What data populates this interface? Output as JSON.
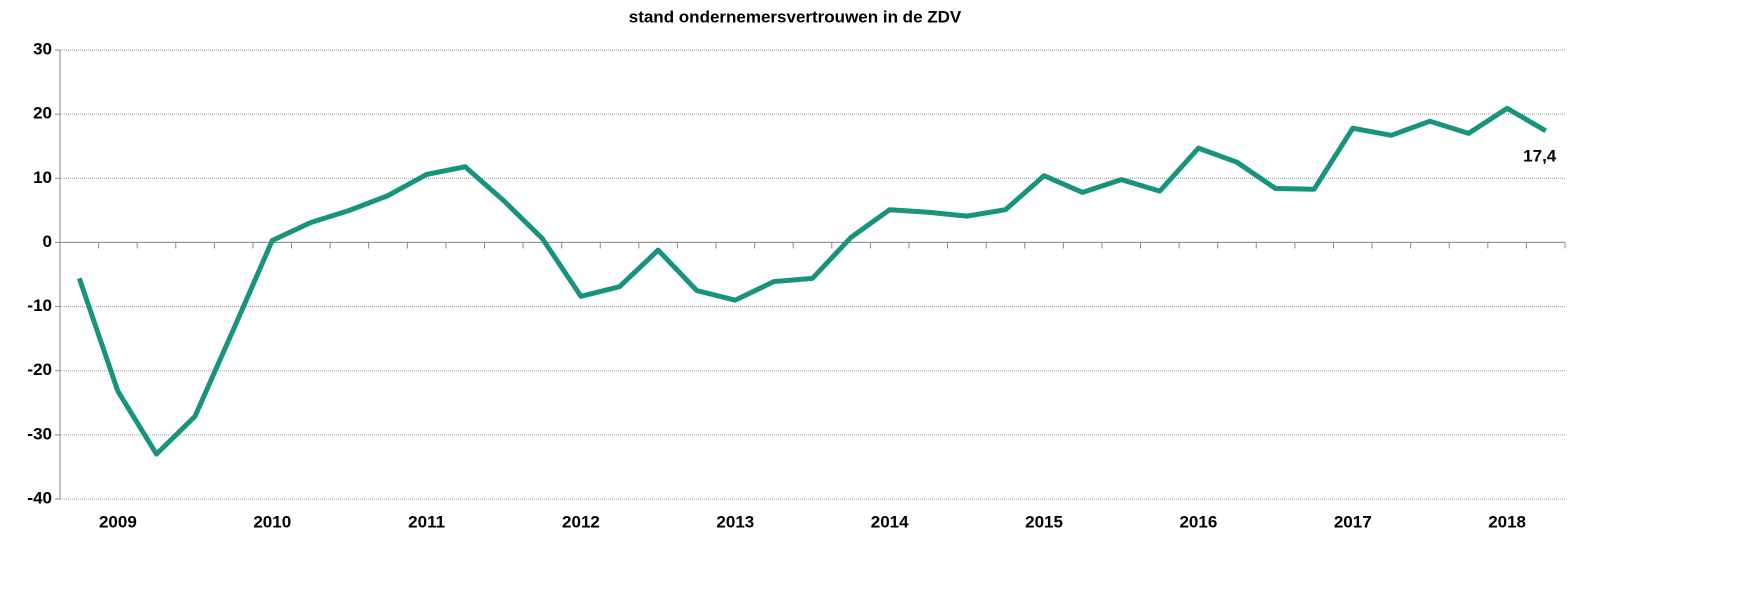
{
  "chart_data": {
    "type": "line",
    "title": "stand ondernemersvertrouwen in de ZDV",
    "categories": [
      null,
      "2009",
      null,
      null,
      null,
      "2010",
      null,
      null,
      null,
      "2011",
      null,
      null,
      null,
      "2012",
      null,
      null,
      null,
      "2013",
      null,
      null,
      null,
      "2014",
      null,
      null,
      null,
      "2015",
      null,
      null,
      null,
      "2016",
      null,
      null,
      null,
      "2017",
      null,
      null,
      null,
      "2018",
      null
    ],
    "series": [
      {
        "name": "stand ondernemersvertrouwen",
        "color": "#17937e",
        "values": [
          -5.6,
          -23.2,
          -33,
          -27.1,
          -13.5,
          0.3,
          3.1,
          5,
          7.3,
          10.6,
          11.8,
          6.5,
          0.6,
          -8.4,
          -6.9,
          -1.2,
          -7.5,
          -9,
          -6.1,
          -5.6,
          0.8,
          5.1,
          4.7,
          4.1,
          5.1,
          10.4,
          7.8,
          9.8,
          8,
          14.7,
          12.5,
          8.4,
          8.3,
          17.8,
          16.7,
          18.9,
          17,
          20.9,
          17.4
        ],
        "value_labels": [
          null,
          null,
          null,
          null,
          null,
          null,
          null,
          null,
          null,
          null,
          null,
          null,
          null,
          null,
          null,
          null,
          null,
          null,
          null,
          null,
          null,
          null,
          null,
          null,
          null,
          null,
          null,
          null,
          null,
          null,
          null,
          null,
          null,
          null,
          null,
          null,
          null,
          null,
          "17,4"
        ]
      }
    ],
    "ylim": [
      -40,
      30
    ],
    "yticks": [
      -40,
      -30,
      -20,
      -10,
      0,
      10,
      20,
      30
    ],
    "grid": true
  }
}
